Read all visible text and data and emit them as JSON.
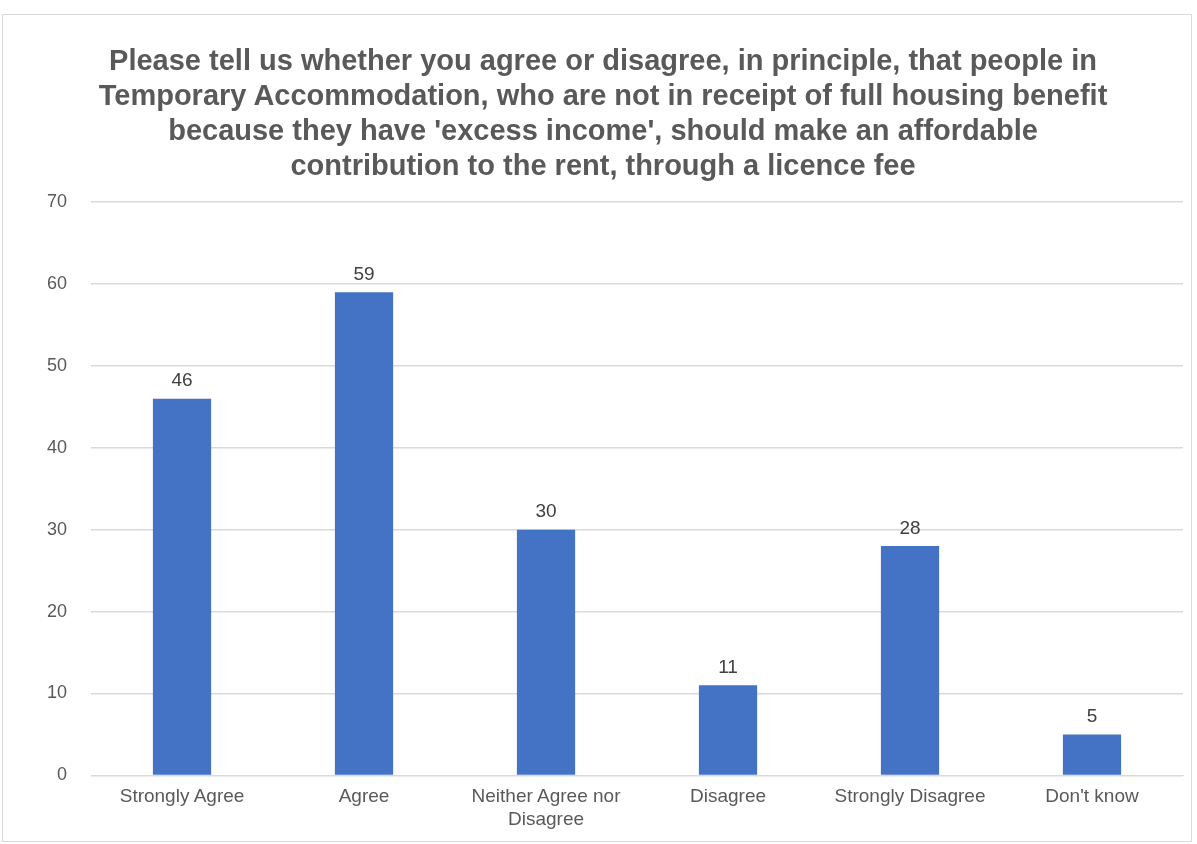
{
  "chart_data": {
    "type": "bar",
    "title": "Please tell us whether you agree or disagree, in principle, that people in Temporary Accommodation, who are not in receipt of full housing benefit because they have 'excess income', should make an affordable contribution to the rent, through a licence fee",
    "categories": [
      "Strongly Agree",
      "Agree",
      "Neither Agree nor Disagree",
      "Disagree",
      "Strongly Disagree",
      "Don't know"
    ],
    "values": [
      46,
      59,
      30,
      11,
      28,
      5
    ],
    "color": "#4472c4",
    "ylim": [
      0,
      70
    ],
    "yticks": [
      0,
      10,
      20,
      30,
      40,
      50,
      60,
      70
    ],
    "grid": "y",
    "data_labels": true
  }
}
